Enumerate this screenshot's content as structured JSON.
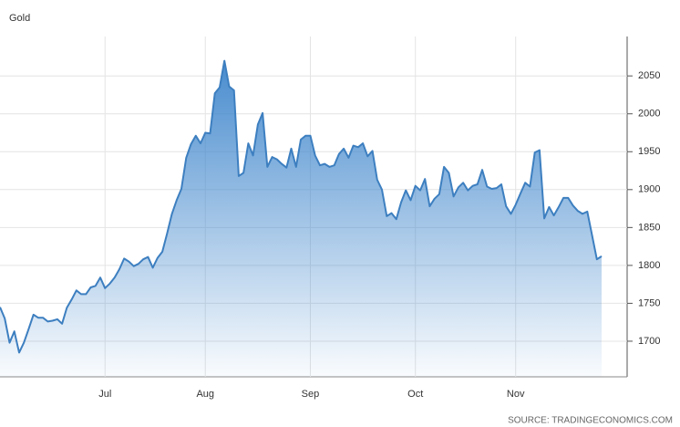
{
  "chart_data": {
    "type": "area",
    "title": "Gold",
    "source": "SOURCE: TRADINGECONOMICS.COM",
    "categories": [
      null,
      null,
      null,
      null,
      null,
      null,
      null,
      null,
      null,
      null,
      null,
      null,
      null,
      null,
      null,
      null,
      null,
      null,
      null,
      null,
      null,
      null,
      "Jul",
      null,
      null,
      null,
      null,
      null,
      null,
      null,
      null,
      null,
      null,
      null,
      null,
      null,
      null,
      null,
      null,
      null,
      null,
      null,
      null,
      "Aug",
      null,
      null,
      null,
      null,
      null,
      null,
      null,
      null,
      null,
      null,
      null,
      null,
      null,
      null,
      null,
      null,
      null,
      null,
      null,
      null,
      null,
      "Sep",
      null,
      null,
      null,
      null,
      null,
      null,
      null,
      null,
      null,
      null,
      null,
      null,
      null,
      null,
      null,
      null,
      null,
      null,
      null,
      null,
      null,
      "Oct",
      null,
      null,
      null,
      null,
      null,
      null,
      null,
      null,
      null,
      null,
      null,
      null,
      null,
      null,
      null,
      null,
      null,
      null,
      null,
      null,
      "Nov",
      null,
      null,
      null,
      null,
      null,
      null,
      null,
      null,
      null,
      null,
      null,
      null,
      null,
      null,
      null,
      null,
      null,
      null
    ],
    "values": [
      1745,
      1730,
      1698,
      1713,
      1685,
      1698,
      1716,
      1735,
      1731,
      1731,
      1726,
      1727,
      1729,
      1723,
      1744,
      1755,
      1767,
      1762,
      1762,
      1771,
      1773,
      1784,
      1770,
      1776,
      1784,
      1795,
      1809,
      1805,
      1799,
      1802,
      1808,
      1811,
      1797,
      1810,
      1818,
      1842,
      1868,
      1886,
      1901,
      1942,
      1960,
      1971,
      1961,
      1975,
      1974,
      2027,
      2035,
      2070,
      2036,
      2031,
      1918,
      1922,
      1961,
      1945,
      1986,
      2001,
      1930,
      1943,
      1940,
      1934,
      1929,
      1954,
      1930,
      1966,
      1971,
      1971,
      1945,
      1932,
      1934,
      1930,
      1932,
      1947,
      1954,
      1942,
      1958,
      1956,
      1961,
      1944,
      1951,
      1913,
      1900,
      1865,
      1869,
      1861,
      1883,
      1899,
      1886,
      1905,
      1899,
      1914,
      1878,
      1888,
      1894,
      1930,
      1922,
      1891,
      1903,
      1909,
      1899,
      1905,
      1907,
      1926,
      1904,
      1901,
      1902,
      1907,
      1878,
      1868,
      1880,
      1895,
      1909,
      1904,
      1949,
      1952,
      1862,
      1877,
      1866,
      1877,
      1889,
      1889,
      1879,
      1872,
      1868,
      1871,
      1840,
      1808,
      1812
    ],
    "color": "#3d7fc0",
    "ylim": [
      1653,
      2102
    ],
    "yticks": [
      1700,
      1750,
      1800,
      1850,
      1900,
      1950,
      2000,
      2050
    ],
    "grid": true
  }
}
